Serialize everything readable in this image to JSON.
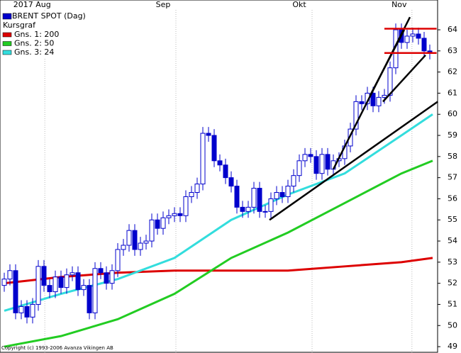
{
  "chart_data": {
    "type": "candlestick",
    "title": "BRENT SPOT (Dag)",
    "subtitle": "Kursgraf",
    "footer": "Copyright (c) 1993-2006 Avanza Vikingen AB",
    "color": "#0000cc",
    "xlim": [
      -0.75,
      76.375
    ],
    "ylim": [
      48.7,
      65.41
    ],
    "xticks": [
      {
        "value": 4.9,
        "label": "2017 Aug"
      },
      {
        "value": 28,
        "label": "Sep"
      },
      {
        "value": 52,
        "label": "Okt"
      },
      {
        "value": 69.6,
        "label": "Nov"
      }
    ],
    "yticks": [
      49,
      50,
      51,
      52,
      53,
      54,
      55,
      56,
      57,
      58,
      59,
      60,
      61,
      62,
      63,
      64
    ],
    "grid": true,
    "open": [
      51.9,
      52.2,
      52.6,
      50.6,
      50.9,
      50.4,
      51.0,
      52.8,
      51.9,
      51.6,
      52.3,
      51.8,
      52.4,
      52.5,
      51.7,
      51.9,
      50.6,
      52.7,
      52.5,
      52.0,
      52.6,
      53.6,
      53.8,
      54.5,
      53.6,
      53.9,
      54.0,
      55.0,
      54.6,
      55.1,
      55.2,
      55.3,
      55.2,
      56.1,
      56.3,
      56.7,
      59.1,
      59.0,
      57.8,
      57.6,
      57.0,
      56.6,
      55.6,
      55.4,
      55.6,
      56.5,
      55.4,
      55.4,
      56.0,
      56.3,
      56.1,
      56.6,
      57.1,
      57.8,
      58.1,
      58.0,
      57.2,
      58.1,
      57.4,
      57.8,
      57.9,
      58.5,
      59.3,
      60.6,
      60.5,
      61.0,
      60.4,
      60.8,
      60.9,
      62.2,
      64.0,
      63.4,
      63.7,
      63.8,
      63.6,
      63.0
    ],
    "high": [
      52.5,
      52.9,
      52.9,
      51.2,
      51.2,
      51.3,
      53.1,
      53.1,
      52.2,
      52.6,
      52.6,
      52.7,
      52.8,
      52.8,
      52.2,
      52.2,
      53.0,
      53.0,
      52.8,
      52.9,
      53.9,
      54.1,
      54.8,
      54.8,
      54.2,
      54.3,
      55.3,
      55.3,
      55.4,
      55.5,
      55.6,
      55.6,
      56.4,
      56.6,
      57.0,
      59.4,
      59.4,
      59.3,
      58.1,
      57.9,
      57.3,
      56.9,
      55.9,
      55.9,
      56.8,
      56.8,
      55.7,
      56.3,
      56.6,
      56.6,
      56.9,
      57.4,
      58.1,
      58.4,
      58.4,
      58.3,
      58.4,
      58.4,
      58.1,
      58.2,
      58.8,
      59.6,
      60.9,
      60.9,
      61.3,
      61.3,
      61.1,
      61.2,
      62.5,
      64.3,
      64.3,
      64.0,
      64.1,
      64.1,
      63.9,
      63.3
    ],
    "low": [
      51.6,
      51.9,
      50.3,
      50.3,
      50.1,
      50.1,
      50.7,
      51.6,
      51.3,
      51.3,
      51.5,
      51.5,
      52.1,
      51.4,
      51.4,
      50.3,
      50.3,
      52.2,
      51.7,
      51.7,
      52.3,
      53.3,
      53.5,
      53.3,
      53.3,
      53.6,
      53.7,
      54.3,
      54.3,
      54.8,
      54.9,
      54.9,
      54.9,
      55.8,
      56.0,
      56.4,
      58.7,
      57.5,
      57.3,
      56.7,
      56.3,
      55.3,
      55.1,
      55.1,
      55.3,
      55.1,
      55.1,
      55.1,
      55.7,
      55.8,
      55.8,
      56.3,
      56.8,
      57.5,
      57.7,
      56.9,
      56.9,
      57.1,
      57.1,
      57.5,
      57.6,
      58.2,
      59.0,
      60.2,
      60.2,
      60.1,
      60.1,
      60.5,
      60.6,
      61.9,
      63.1,
      63.1,
      63.4,
      63.3,
      62.7,
      62.6
    ],
    "close": [
      52.2,
      52.6,
      50.6,
      50.9,
      50.4,
      51.0,
      52.8,
      51.9,
      51.6,
      52.3,
      51.8,
      52.4,
      52.5,
      51.7,
      51.9,
      50.6,
      52.7,
      52.5,
      52.0,
      52.6,
      53.6,
      53.8,
      54.5,
      53.6,
      53.9,
      54.0,
      55.0,
      54.6,
      55.1,
      55.2,
      55.3,
      55.2,
      56.1,
      56.3,
      56.7,
      59.1,
      59.0,
      57.8,
      57.6,
      57.0,
      56.6,
      55.6,
      55.4,
      55.6,
      56.5,
      55.4,
      55.4,
      56.0,
      56.3,
      56.1,
      56.6,
      57.1,
      57.8,
      58.1,
      58.0,
      57.2,
      58.1,
      57.4,
      57.8,
      57.9,
      58.5,
      59.3,
      60.6,
      60.5,
      61.0,
      60.4,
      60.8,
      60.9,
      62.2,
      64.0,
      63.4,
      63.7,
      63.8,
      63.6,
      63.0,
      62.9
    ],
    "series": [
      {
        "name": "Gns. 1: 200",
        "color": "#dd0000",
        "x": [
          0,
          10,
          20,
          30,
          40,
          50,
          60,
          70,
          75.5
        ],
        "values": [
          52.0,
          52.3,
          52.5,
          52.6,
          52.6,
          52.6,
          52.8,
          53.0,
          53.2
        ]
      },
      {
        "name": "Gns. 2: 50",
        "color": "#22cc22",
        "x": [
          0,
          10,
          20,
          30,
          40,
          50,
          60,
          70,
          75.5
        ],
        "values": [
          49.0,
          49.5,
          50.3,
          51.5,
          53.2,
          54.4,
          55.8,
          57.2,
          57.8
        ]
      },
      {
        "name": "Gns. 3: 24",
        "color": "#33dddd",
        "x": [
          0,
          10,
          20,
          30,
          40,
          50,
          60,
          70,
          75.5
        ],
        "values": [
          50.7,
          51.5,
          52.2,
          53.2,
          55.0,
          56.2,
          57.2,
          59.0,
          60.0
        ]
      }
    ],
    "trend_lines": [
      {
        "color": "#000000",
        "x": [
          46.75,
          76.4
        ],
        "y": [
          55.0,
          60.6
        ]
      },
      {
        "color": "#000000",
        "x": [
          58,
          71.5
        ],
        "y": [
          57.4,
          64.6
        ]
      },
      {
        "color": "#000000",
        "x": [
          64.5,
          70.5
        ],
        "y": [
          60.9,
          64.0
        ]
      },
      {
        "color": "#000000",
        "x": [
          66.75,
          74.25
        ],
        "y": [
          60.6,
          62.8
        ]
      },
      {
        "color": "#dd0000",
        "x": [
          67,
          76.2
        ],
        "y": [
          64.05,
          64.05
        ]
      },
      {
        "color": "#dd0000",
        "x": [
          67,
          76.2
        ],
        "y": [
          62.9,
          62.9
        ]
      }
    ]
  }
}
